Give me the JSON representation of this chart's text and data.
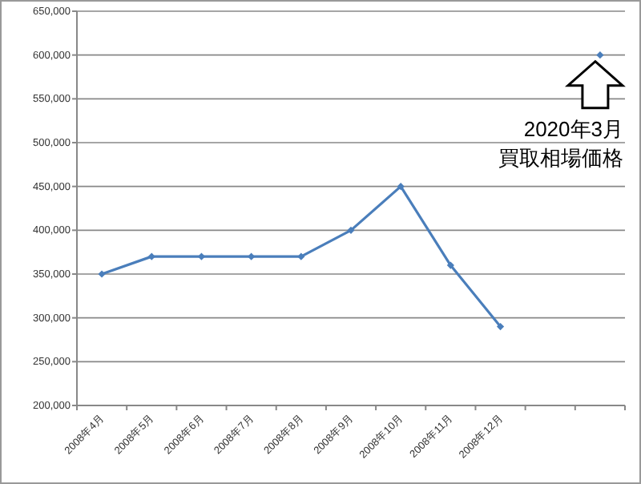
{
  "chart_data": {
    "type": "line",
    "categories": [
      "2008年4月",
      "2008年5月",
      "2008年6月",
      "2008年7月",
      "2008年8月",
      "2008年9月",
      "2008年10月",
      "2008年11月",
      "2008年12月",
      null,
      null
    ],
    "series": [
      {
        "color": "#4a7ebb",
        "values": [
          350000,
          370000,
          370000,
          370000,
          370000,
          400000,
          450000,
          360000,
          290000,
          null,
          600000
        ]
      }
    ],
    "ylim": [
      200000,
      650000
    ],
    "yticks": [
      {
        "value": 200000,
        "label": "200,000"
      },
      {
        "value": 250000,
        "label": "250,000"
      },
      {
        "value": 300000,
        "label": "300,000"
      },
      {
        "value": 350000,
        "label": "350,000"
      },
      {
        "value": 400000,
        "label": "400,000"
      },
      {
        "value": 450000,
        "label": "450,000"
      },
      {
        "value": 500000,
        "label": "500,000"
      },
      {
        "value": 550000,
        "label": "550,000"
      },
      {
        "value": 600000,
        "label": "600,000"
      },
      {
        "value": 650000,
        "label": "650,000"
      }
    ],
    "grid": "y",
    "marker": "diamond",
    "line_style": "solid",
    "annotations": [
      "2020年3月",
      "買取相場価格"
    ]
  }
}
